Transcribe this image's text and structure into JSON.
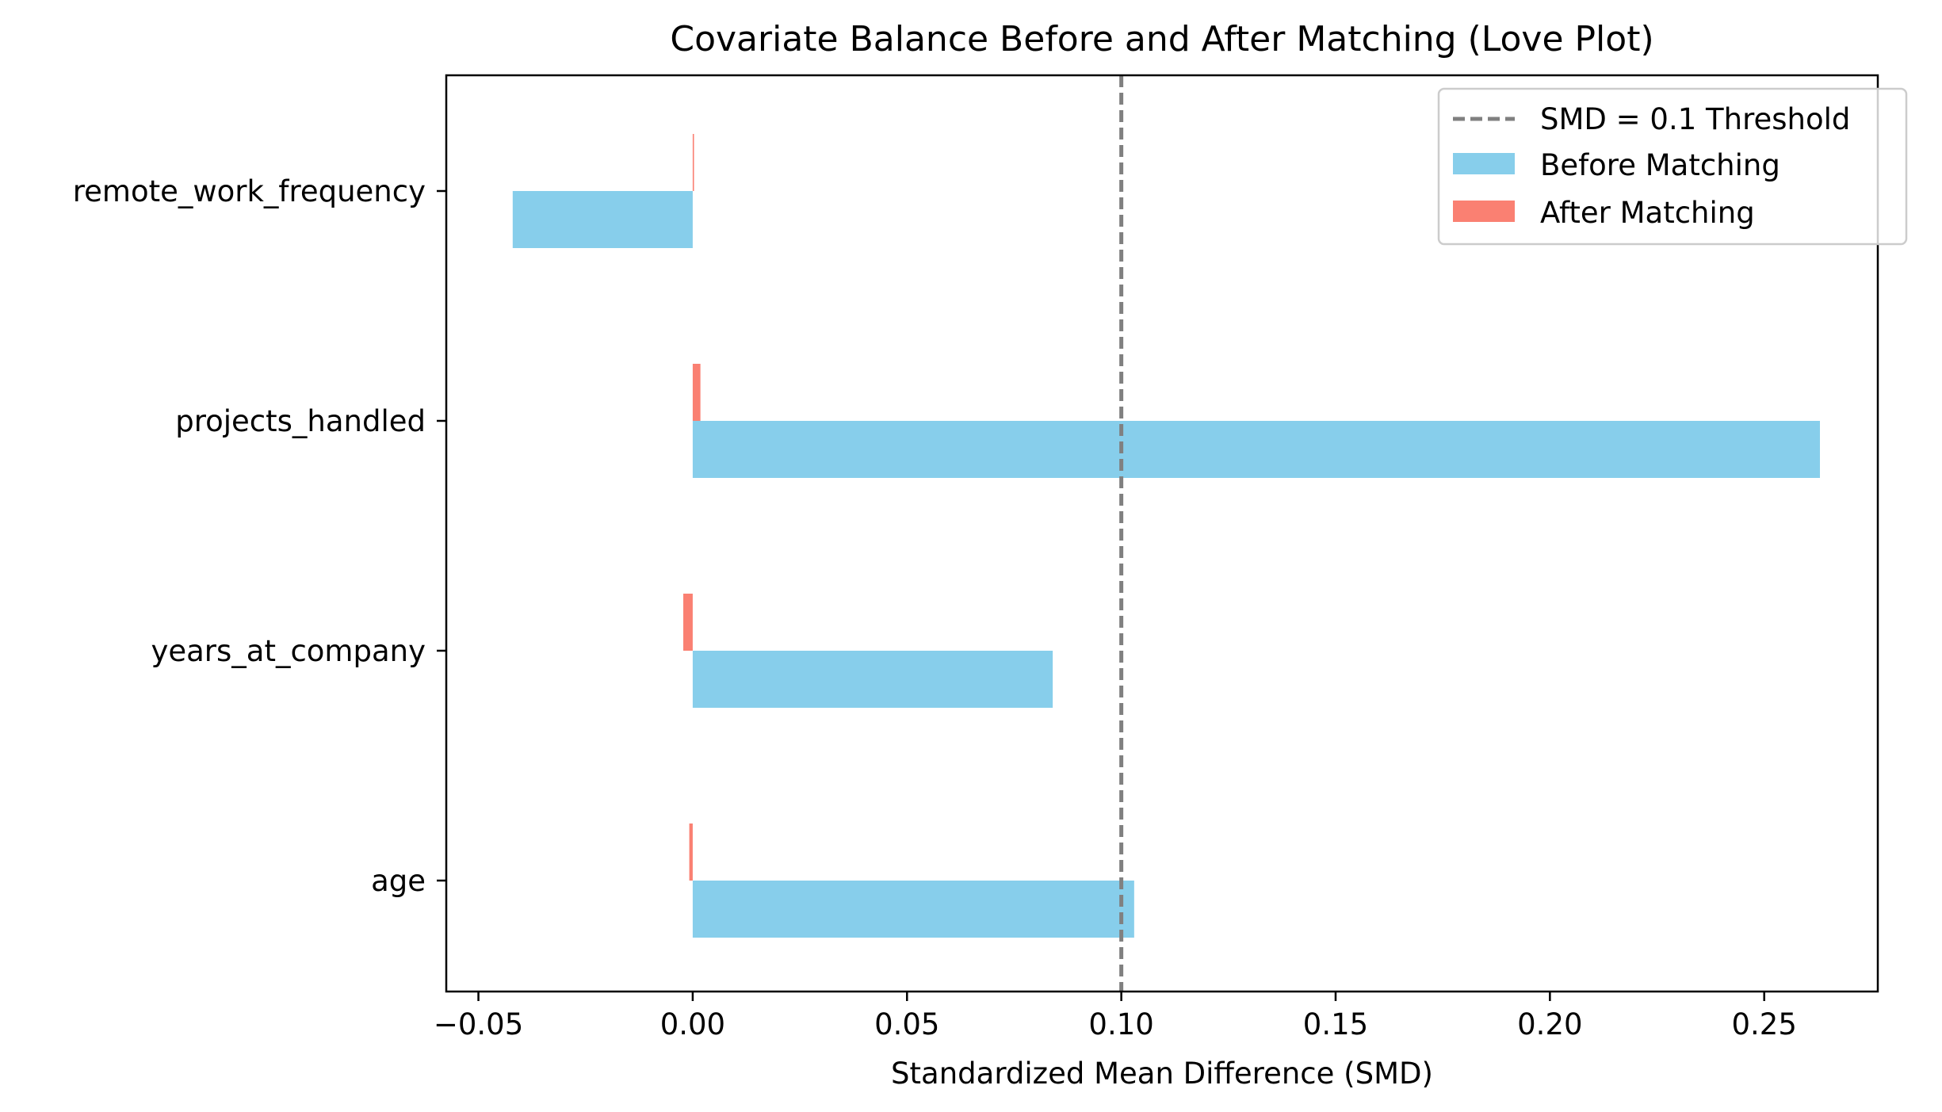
{
  "chart_data": {
    "type": "bar",
    "orientation": "horizontal",
    "title": "Covariate Balance Before and After Matching (Love Plot)",
    "xlabel": "Standardized Mean Difference (SMD)",
    "ylabel": "",
    "categories": [
      "age",
      "years_at_company",
      "projects_handled",
      "remote_work_frequency"
    ],
    "series": [
      {
        "name": "Before Matching",
        "values": [
          0.103,
          0.084,
          0.263,
          -0.042
        ],
        "color": "#87CEEB"
      },
      {
        "name": "After Matching",
        "values": [
          -0.0008,
          -0.0022,
          0.0018,
          0.0003
        ],
        "color": "#FA8072"
      }
    ],
    "threshold": {
      "name": "SMD = 0.1 Threshold",
      "value": 0.1,
      "color": "#808080",
      "style": "dashed"
    },
    "xlim": [
      -0.0575,
      0.2765
    ],
    "xticks": [
      -0.05,
      0.0,
      0.05,
      0.1,
      0.15,
      0.2,
      0.25
    ],
    "xtick_labels": [
      "−0.05",
      "0.00",
      "0.05",
      "0.10",
      "0.15",
      "0.20",
      "0.25"
    ],
    "grid": false,
    "legend_position": "top-right"
  }
}
